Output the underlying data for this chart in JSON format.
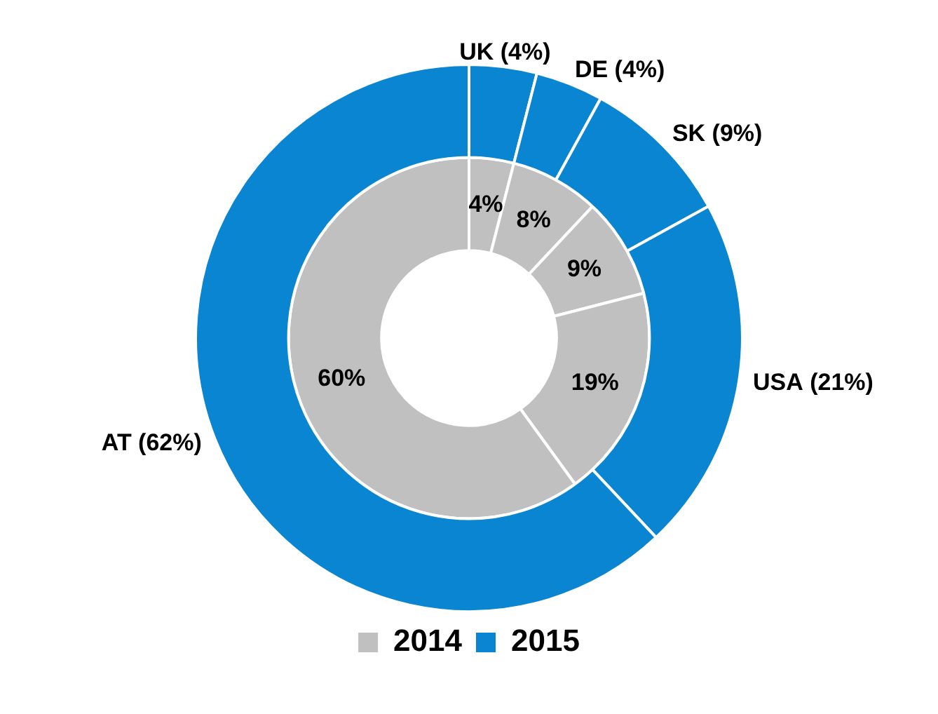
{
  "chart_data": {
    "type": "donut",
    "categories": [
      "UK",
      "DE",
      "SK",
      "USA",
      "AT"
    ],
    "series": [
      {
        "name": "2015",
        "color": "#0a85d1",
        "values": [
          4,
          4,
          9,
          21,
          62
        ],
        "value_labels": [
          "(4%)",
          "(4%)",
          "(9%)",
          "(21%)",
          "(62%)"
        ]
      },
      {
        "name": "2014",
        "color": "#c0c0c0",
        "values": [
          4,
          8,
          9,
          19,
          60
        ],
        "value_labels": [
          "4%",
          "8%",
          "9%",
          "19%",
          "60%"
        ]
      }
    ],
    "legend": "bottom"
  }
}
